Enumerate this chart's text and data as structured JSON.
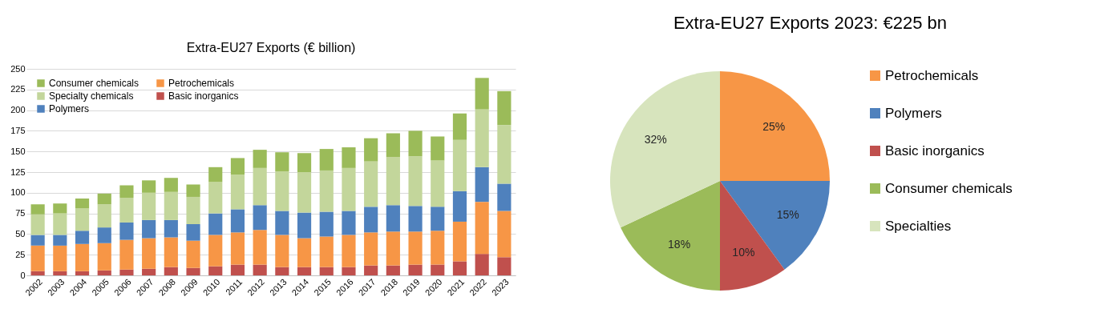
{
  "chart_data": [
    {
      "type": "bar",
      "title": "Extra-EU27  Exports (€ billion)",
      "categories": [
        "2002",
        "2003",
        "2004",
        "2005",
        "2006",
        "2007",
        "2008",
        "2009",
        "2010",
        "2011",
        "2012",
        "2013",
        "2014",
        "2015",
        "2016",
        "2017",
        "2018",
        "2019",
        "2020",
        "2021",
        "2022",
        "2023"
      ],
      "series": [
        {
          "name": "Basic inorganics",
          "color": "#c0504d",
          "values": [
            5,
            5,
            5,
            6,
            7,
            8,
            10,
            9,
            11,
            13,
            13,
            10,
            10,
            10,
            10,
            12,
            12,
            13,
            13,
            17,
            26,
            22
          ]
        },
        {
          "name": "Petrochemicals",
          "color": "#f79646",
          "values": [
            31,
            31,
            33,
            33,
            36,
            37,
            36,
            33,
            38,
            39,
            42,
            39,
            35,
            37,
            39,
            40,
            41,
            40,
            41,
            48,
            63,
            56
          ]
        },
        {
          "name": "Polymers",
          "color": "#4f81bd",
          "values": [
            13,
            13,
            16,
            19,
            21,
            22,
            21,
            20,
            26,
            28,
            30,
            29,
            31,
            30,
            29,
            31,
            32,
            31,
            29,
            37,
            42,
            33
          ]
        },
        {
          "name": "Specialty chemicals",
          "color": "#c3d69b",
          "values": [
            25,
            26,
            27,
            28,
            30,
            33,
            34,
            33,
            38,
            42,
            45,
            48,
            49,
            50,
            52,
            55,
            58,
            60,
            56,
            62,
            70,
            71
          ]
        },
        {
          "name": "Consumer chemicals",
          "color": "#9bbb59",
          "values": [
            12,
            12,
            12,
            13,
            15,
            15,
            17,
            15,
            18,
            20,
            22,
            23,
            23,
            26,
            25,
            28,
            29,
            31,
            29,
            32,
            38,
            41
          ]
        }
      ],
      "stacked": true,
      "ylim": [
        0,
        250
      ],
      "yticks": [
        0,
        25,
        50,
        75,
        100,
        125,
        150,
        175,
        200,
        225,
        250
      ],
      "grid": "y",
      "legend": "top left"
    },
    {
      "type": "pie",
      "title": "Extra-EU27 Exports 2023: €225 bn",
      "categories": [
        "Petrochemicals",
        "Polymers",
        "Basic inorganics",
        "Consumer chemicals",
        "Specialties"
      ],
      "values": [
        25,
        15,
        10,
        18,
        32
      ],
      "colors": [
        "#f79646",
        "#4f81bd",
        "#c0504d",
        "#9bbb59",
        "#d7e4bd"
      ],
      "value_labels": [
        "25%",
        "15%",
        "10%",
        "18%",
        "32%"
      ],
      "legend": "right"
    }
  ]
}
